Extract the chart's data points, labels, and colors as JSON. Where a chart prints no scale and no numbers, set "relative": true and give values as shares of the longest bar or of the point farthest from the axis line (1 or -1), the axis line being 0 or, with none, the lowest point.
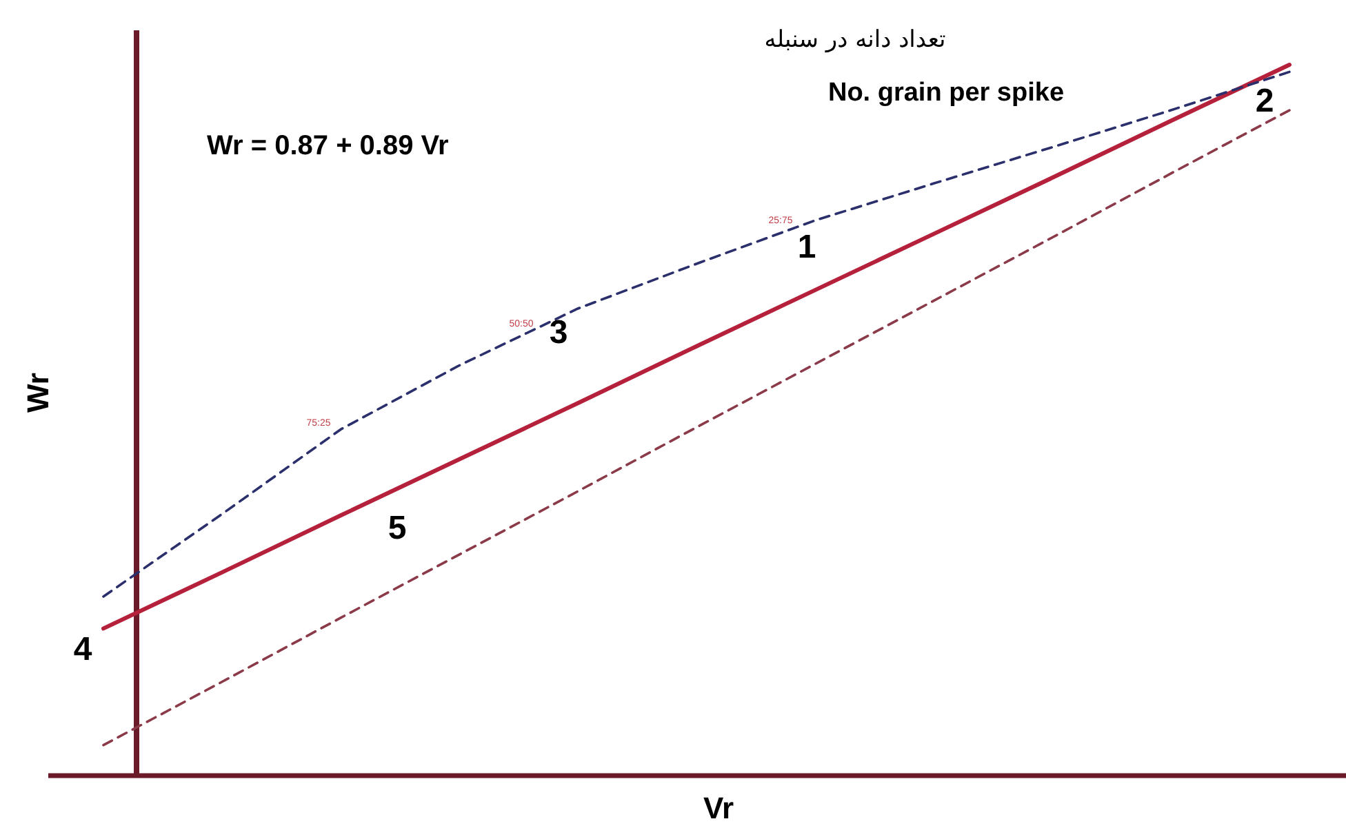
{
  "chart_data": {
    "type": "line",
    "relative": true,
    "title": "تعداد دانه در سنبله",
    "subtitle": "No. grain per spike",
    "xlabel": "Vr",
    "ylabel": "Wr",
    "categories": [
      null,
      null,
      null,
      null,
      null,
      null,
      null,
      null,
      null,
      null,
      null
    ],
    "series": [
      {
        "color": "#b5213b",
        "line_style": "solid",
        "values": [
          0.207,
          0.286,
          0.366,
          0.445,
          0.524,
          0.604,
          0.683,
          0.762,
          0.841,
          0.921,
          1.0
        ]
      },
      {
        "color": "#2b2f6b",
        "line_style": "dashed",
        "values": [
          0.252,
          0.368,
          0.487,
          0.577,
          0.657,
          0.72,
          0.781,
          0.833,
          0.884,
          0.936,
          0.99
        ]
      },
      {
        "color": "#8b3a4a",
        "line_style": "dashed",
        "values": [
          0.043,
          0.132,
          0.222,
          0.311,
          0.4,
          0.49,
          0.579,
          0.668,
          0.757,
          0.847,
          0.936
        ]
      }
    ],
    "annotations": [
      "Wr = 0.87 + 0.89 Vr",
      "1",
      "2",
      "3",
      "4",
      "5",
      "75:25",
      "50:50",
      "25:75"
    ]
  }
}
